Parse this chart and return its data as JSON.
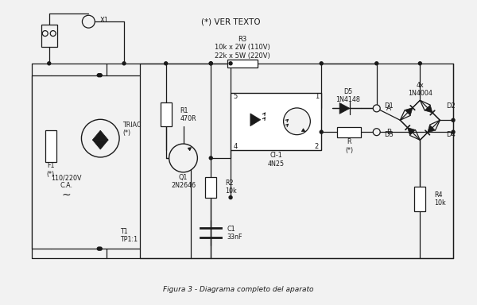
{
  "bg_color": "#f2f2f2",
  "lc": "#1a1a1a",
  "caption": "(*) VER TEXTO",
  "r3_text": "R3\n10k x 2W (110V)\n22k x 5W (220V)",
  "title": "Figura 3 - Diagrama completo del aparato"
}
